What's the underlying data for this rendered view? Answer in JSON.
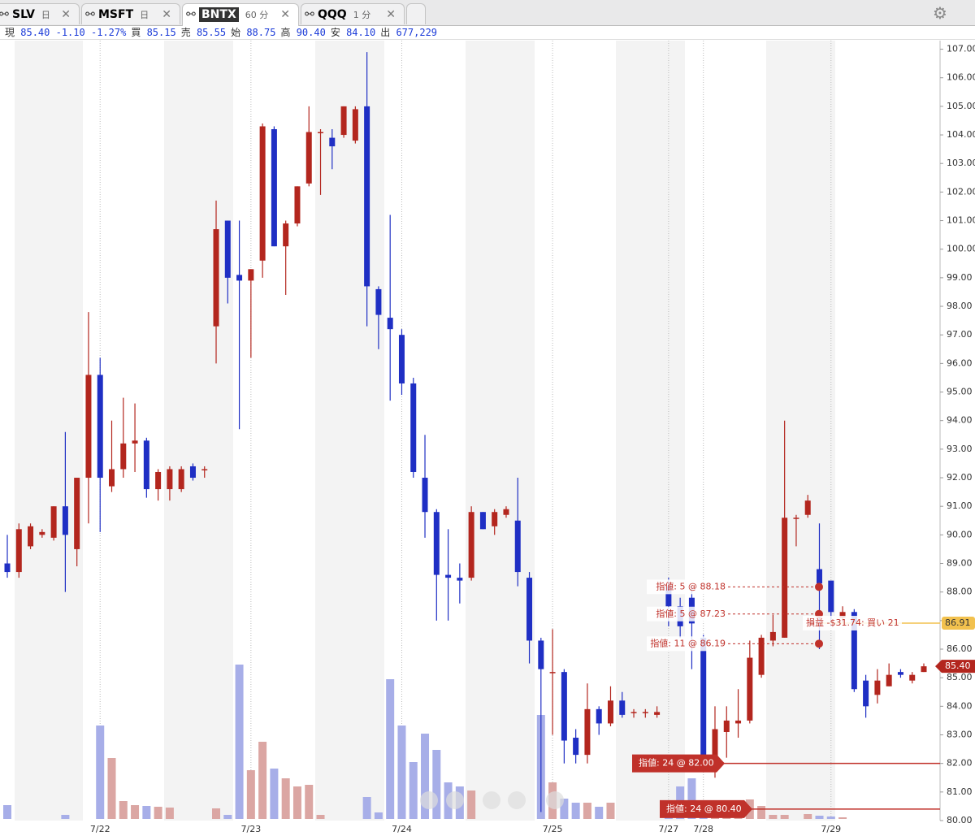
{
  "tabs": [
    {
      "symbol": "SLV",
      "interval": "日"
    },
    {
      "symbol": "MSFT",
      "interval": "日"
    },
    {
      "symbol": "BNTX",
      "interval": "60 分"
    },
    {
      "symbol": "QQQ",
      "interval": "1 分"
    }
  ],
  "quote": [
    {
      "label": "現",
      "value": "85.40"
    },
    {
      "label": "",
      "value": "-1.10"
    },
    {
      "label": "",
      "value": "-1.27%"
    },
    {
      "label": "買",
      "value": "85.15"
    },
    {
      "label": "売",
      "value": "85.55"
    },
    {
      "label": "始",
      "value": "88.75"
    },
    {
      "label": "高",
      "value": "90.40"
    },
    {
      "label": "安",
      "value": "84.10"
    },
    {
      "label": "出",
      "value": "677,229"
    }
  ],
  "chart_data": {
    "type": "candlestick",
    "categories": [
      null,
      null,
      null,
      null,
      null,
      null,
      null,
      null,
      "7/22",
      null,
      null,
      null,
      null,
      null,
      null,
      null,
      null,
      null,
      null,
      null,
      null,
      "7/23",
      null,
      null,
      null,
      null,
      null,
      null,
      null,
      null,
      null,
      null,
      null,
      null,
      "7/24",
      null,
      null,
      null,
      null,
      null,
      null,
      null,
      null,
      null,
      null,
      null,
      null,
      "7/25",
      null,
      null,
      null,
      null,
      null,
      null,
      null,
      null,
      null,
      "7/27",
      null,
      null,
      "7/28",
      null,
      null,
      null,
      null,
      null,
      null,
      null,
      null,
      null,
      null,
      "7/29",
      null,
      null,
      null,
      null,
      null,
      null,
      null,
      null
    ],
    "open": [
      89.0,
      88.7,
      89.6,
      90.0,
      89.9,
      91.0,
      89.5,
      92.0,
      95.6,
      91.7,
      92.3,
      93.2,
      93.3,
      91.6,
      91.6,
      91.6,
      92.4,
      92.3,
      97.3,
      101.0,
      99.1,
      98.9,
      99.6,
      104.2,
      100.1,
      100.9,
      102.3,
      104.1,
      103.9,
      104.0,
      103.8,
      105.0,
      98.6,
      97.6,
      97.0,
      95.3,
      92.0,
      90.8,
      88.6,
      88.5,
      88.5,
      90.8,
      90.3,
      90.7,
      90.5,
      88.5,
      86.3,
      85.2,
      85.2,
      82.9,
      82.3,
      83.9,
      83.4,
      84.2,
      83.8,
      83.8,
      83.7,
      88.2,
      87.5,
      87.8,
      86.4,
      82.0,
      83.1,
      83.4,
      83.5,
      85.1,
      86.3,
      86.4,
      90.6,
      90.7,
      88.8,
      88.4,
      87.1,
      87.3,
      84.9,
      84.4,
      84.7,
      85.2,
      84.9,
      85.2
    ],
    "high": [
      90.0,
      90.4,
      90.4,
      90.2,
      91.0,
      93.6,
      92.0,
      97.8,
      96.2,
      94.0,
      94.8,
      94.6,
      93.4,
      92.3,
      92.4,
      92.4,
      92.5,
      92.4,
      101.7,
      101.0,
      101.0,
      99.3,
      104.4,
      104.3,
      101.0,
      102.2,
      105.0,
      104.2,
      104.2,
      105.0,
      105.0,
      106.9,
      98.7,
      101.2,
      97.2,
      95.5,
      93.5,
      90.9,
      90.2,
      89.0,
      91.0,
      90.8,
      90.9,
      91.0,
      92.0,
      88.7,
      86.4,
      86.7,
      85.3,
      83.2,
      84.8,
      84.0,
      84.7,
      84.5,
      83.9,
      83.9,
      84.0,
      88.5,
      87.8,
      88.2,
      86.5,
      84.0,
      84.0,
      84.6,
      86.3,
      86.5,
      87.2,
      94.0,
      90.7,
      91.4,
      90.4,
      88.4,
      87.5,
      87.4,
      85.1,
      85.3,
      85.5,
      85.3,
      85.2,
      85.5
    ],
    "low": [
      88.5,
      88.5,
      89.5,
      89.9,
      89.8,
      88.0,
      88.9,
      90.4,
      90.1,
      91.5,
      92.0,
      92.2,
      91.3,
      91.2,
      91.2,
      91.5,
      91.9,
      92.0,
      96.0,
      98.1,
      93.7,
      96.2,
      99.0,
      100.1,
      98.4,
      100.8,
      102.2,
      101.9,
      102.8,
      103.9,
      103.7,
      97.3,
      96.5,
      94.7,
      94.9,
      92.0,
      89.9,
      87.0,
      87.0,
      87.6,
      88.4,
      90.2,
      90.0,
      90.6,
      88.2,
      85.5,
      80.3,
      83.0,
      82.0,
      82.0,
      82.0,
      83.0,
      83.3,
      83.6,
      83.6,
      83.6,
      83.6,
      86.8,
      86.4,
      85.3,
      81.8,
      81.5,
      82.2,
      82.9,
      83.4,
      85.0,
      86.1,
      86.4,
      89.6,
      90.6,
      86.0,
      86.8,
      86.9,
      84.5,
      83.6,
      84.1,
      84.7,
      85.0,
      84.8,
      85.2
    ],
    "close": [
      88.7,
      90.2,
      90.3,
      90.1,
      91.0,
      90.0,
      92.0,
      95.6,
      92.0,
      92.3,
      93.2,
      93.3,
      91.6,
      92.2,
      92.3,
      92.3,
      92.0,
      92.3,
      100.7,
      99.0,
      98.9,
      99.3,
      104.3,
      100.1,
      100.9,
      102.2,
      104.1,
      104.1,
      103.6,
      105.0,
      104.9,
      98.7,
      97.7,
      97.2,
      95.3,
      92.2,
      90.8,
      88.6,
      88.5,
      88.4,
      90.8,
      90.2,
      90.8,
      90.9,
      88.7,
      86.3,
      85.3,
      85.2,
      82.8,
      82.3,
      83.9,
      83.4,
      84.2,
      83.7,
      83.8,
      83.8,
      83.8,
      87.5,
      86.8,
      86.9,
      82.0,
      83.2,
      83.5,
      83.5,
      85.7,
      86.4,
      86.6,
      90.6,
      90.6,
      91.2,
      88.3,
      87.3,
      87.3,
      84.6,
      84.0,
      84.9,
      85.1,
      85.1,
      85.1,
      85.4
    ],
    "volume": [
      17,
      0,
      0,
      0,
      0,
      5,
      0,
      0,
      115,
      75,
      22,
      17,
      16,
      15,
      14,
      0,
      0,
      0,
      13,
      5,
      190,
      60,
      95,
      62,
      50,
      40,
      42,
      5,
      0,
      0,
      0,
      27,
      8,
      172,
      115,
      70,
      105,
      85,
      45,
      40,
      35,
      0,
      0,
      0,
      0,
      0,
      128,
      45,
      25,
      20,
      20,
      15,
      20,
      0,
      0,
      0,
      0,
      15,
      40,
      50,
      22,
      22,
      12,
      18,
      24,
      16,
      5,
      5,
      0,
      6,
      4,
      3,
      2,
      0,
      0,
      0,
      0,
      0,
      0,
      0
    ],
    "up_color": "#b3261e",
    "down_color": "#1f2fc4",
    "ylim": [
      80.0,
      107.3
    ],
    "yticks": [
      {
        "value": 80,
        "label": "80.00"
      },
      {
        "value": 81,
        "label": "81.00"
      },
      {
        "value": 82,
        "label": "82.00"
      },
      {
        "value": 83,
        "label": "83.00"
      },
      {
        "value": 84,
        "label": "84.00"
      },
      {
        "value": 85,
        "label": "85.00"
      },
      {
        "value": 86,
        "label": "86.00"
      },
      {
        "value": 87,
        "label": "87.00"
      },
      {
        "value": 88,
        "label": "88.00"
      },
      {
        "value": 89,
        "label": "89.00"
      },
      {
        "value": 90,
        "label": "90.00"
      },
      {
        "value": 91,
        "label": "91.00"
      },
      {
        "value": 92,
        "label": "92.00"
      },
      {
        "value": 93,
        "label": "93.00"
      },
      {
        "value": 94,
        "label": "94.00"
      },
      {
        "value": 95,
        "label": "95.00"
      },
      {
        "value": 96,
        "label": "96.00"
      },
      {
        "value": 97,
        "label": "97.00"
      },
      {
        "value": 98,
        "label": "98.00"
      },
      {
        "value": 99,
        "label": "99.00"
      },
      {
        "value": 100,
        "label": "100.00"
      },
      {
        "value": 101,
        "label": "101.00"
      },
      {
        "value": 102,
        "label": "102.00"
      },
      {
        "value": 103,
        "label": "103.00"
      },
      {
        "value": 104,
        "label": "104.00"
      },
      {
        "value": 105,
        "label": "105.00"
      },
      {
        "value": 106,
        "label": "106.00"
      },
      {
        "value": 107,
        "label": "107.00"
      }
    ],
    "orders": [
      {
        "label": "指値: 5 @ 88.18",
        "price": 88.18
      },
      {
        "label": "指値: 5 @ 87.23",
        "price": 87.23
      },
      {
        "label": "指値: 11 @ 86.19",
        "price": 86.19
      },
      {
        "label": "指値: 24 @ 82.00",
        "price": 82.0
      },
      {
        "label": "指値: 24 @ 80.40",
        "price": 80.4
      }
    ],
    "position": {
      "label": "損益 -$31.74: 買い 21",
      "price": 86.91,
      "price_label": "86.91",
      "color": "#f2c14e"
    },
    "last": {
      "price": 85.4,
      "label": "85.40",
      "color": "#b3261e"
    }
  }
}
